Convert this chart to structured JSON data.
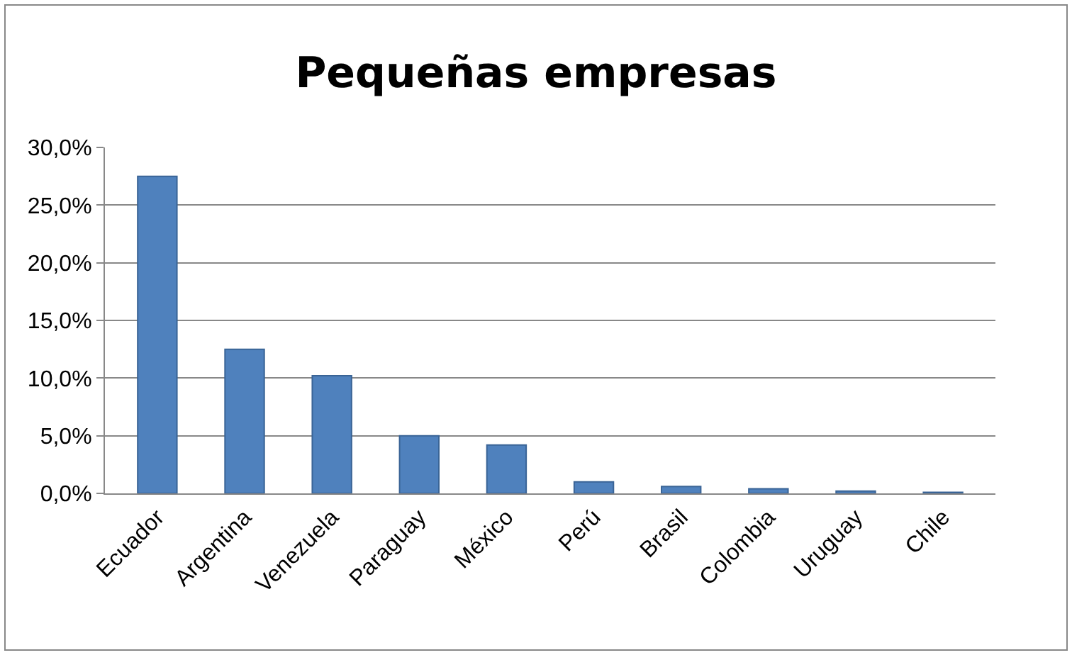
{
  "chart_data": {
    "type": "bar",
    "title": "Pequeñas empresas",
    "categories": [
      "Ecuador",
      "Argentina",
      "Venezuela",
      "Paraguay",
      "México",
      "Perú",
      "Brasil",
      "Colombia",
      "Uruguay",
      "Chile"
    ],
    "values": [
      27.5,
      12.5,
      10.2,
      5.0,
      4.2,
      1.0,
      0.6,
      0.4,
      0.2,
      0.1
    ],
    "color": "#4f81bd",
    "ylim": [
      0,
      30
    ],
    "yticks": [
      {
        "value": 0,
        "label": "0,0%"
      },
      {
        "value": 5,
        "label": "5,0%"
      },
      {
        "value": 10,
        "label": "10,0%"
      },
      {
        "value": 15,
        "label": "15,0%"
      },
      {
        "value": 20,
        "label": "20,0%"
      },
      {
        "value": 25,
        "label": "25,0%"
      },
      {
        "value": 30,
        "label": "30,0%"
      }
    ],
    "grid": "y",
    "legend": false
  }
}
